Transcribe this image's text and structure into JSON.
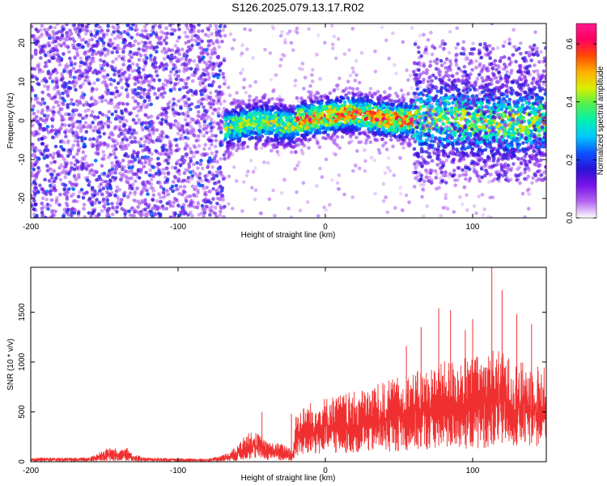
{
  "title": "S126.2025.079.13.17.R02",
  "chart_data": [
    {
      "type": "heatmap",
      "xlabel": "Height of straight line (km)",
      "ylabel": "Frequency (Hz)",
      "xlim": [
        -200,
        150
      ],
      "ylim": [
        -25,
        25
      ],
      "x_ticks": [
        -200,
        -100,
        0,
        100
      ],
      "x_tick_labels": [
        "-200",
        "-100",
        "0",
        "100"
      ],
      "y_ticks": [
        -20,
        -10,
        0,
        10,
        20
      ],
      "y_tick_labels": [
        "-20",
        "-10",
        "0",
        "10",
        "20"
      ],
      "colorbar": {
        "label": "Normalized spectral amplitude",
        "range": [
          0.0,
          0.67
        ],
        "ticks": [
          0.0,
          0.2,
          0.4,
          0.6
        ],
        "tick_labels": [
          "0.0",
          "0.2",
          "0.4",
          "0.6"
        ],
        "colormap": [
          "#ffffff",
          "#b565f0",
          "#7a14ea",
          "#2a12d6",
          "#0a52ff",
          "#00c8ff",
          "#00f0b0",
          "#50f050",
          "#d8f000",
          "#ffb000",
          "#ff4a00",
          "#ff0060",
          "#ff1a8c"
        ]
      },
      "regions": [
        {
          "x": [
            -200,
            -68
          ],
          "description": "diffuse low-amplitude noise spread across all frequencies",
          "amplitude": [
            0.05,
            0.25
          ]
        },
        {
          "x": [
            -68,
            -20
          ],
          "ridge_frequency": [
            0,
            0
          ],
          "amplitude_peak": 0.45
        },
        {
          "x": [
            -20,
            60
          ],
          "ridge_frequency": [
            0,
            2
          ],
          "amplitude_peak": 0.6
        },
        {
          "x": [
            60,
            150
          ],
          "ridge_frequency": [
            1,
            0
          ],
          "amplitude_peak": 0.45
        }
      ],
      "grid": false
    },
    {
      "type": "line",
      "xlabel": "Height of straight line (km)",
      "ylabel": "SNR (10 * v/v)",
      "xlim": [
        -200,
        150
      ],
      "ylim": [
        0,
        1950
      ],
      "x_ticks": [
        -200,
        -100,
        0,
        100
      ],
      "x_tick_labels": [
        "-200",
        "-100",
        "0",
        "100"
      ],
      "y_ticks": [
        0,
        500,
        1000,
        1500
      ],
      "y_tick_labels": [
        "0",
        "500",
        "1000",
        "1500"
      ],
      "line_color": "#f03030",
      "envelope": {
        "x": [
          -200,
          -160,
          -150,
          -145,
          -140,
          -135,
          -130,
          -120,
          -100,
          -80,
          -70,
          -60,
          -55,
          -50,
          -45,
          -40,
          -30,
          -25,
          -22,
          -20,
          -10,
          0,
          20,
          40,
          60,
          70,
          80,
          90,
          100,
          110,
          115,
          120,
          130,
          140,
          150
        ],
        "lower": [
          5,
          5,
          5,
          10,
          15,
          10,
          5,
          5,
          5,
          5,
          5,
          10,
          20,
          30,
          30,
          20,
          10,
          5,
          5,
          50,
          60,
          80,
          90,
          100,
          110,
          120,
          120,
          130,
          130,
          140,
          140,
          150,
          150,
          150,
          150
        ],
        "upper": [
          40,
          40,
          120,
          150,
          110,
          140,
          70,
          40,
          30,
          30,
          60,
          150,
          260,
          300,
          280,
          200,
          180,
          160,
          120,
          500,
          600,
          650,
          700,
          800,
          900,
          950,
          1000,
          1050,
          1050,
          1100,
          1150,
          1100,
          1000,
          1000,
          950
        ]
      },
      "peaks": [
        {
          "x": 113,
          "y": 1950
        },
        {
          "x": 85,
          "y": 1520
        },
        {
          "x": 120,
          "y": 1720
        },
        {
          "x": 65,
          "y": 1350
        },
        {
          "x": 130,
          "y": 1480
        },
        {
          "x": 77,
          "y": 1540
        },
        {
          "x": 100,
          "y": 1430
        },
        {
          "x": 140,
          "y": 1380
        },
        {
          "x": 95,
          "y": 1320
        },
        {
          "x": 55,
          "y": 1160
        },
        {
          "x": -43,
          "y": 500
        },
        {
          "x": -23,
          "y": 480
        }
      ],
      "grid": false
    }
  ]
}
